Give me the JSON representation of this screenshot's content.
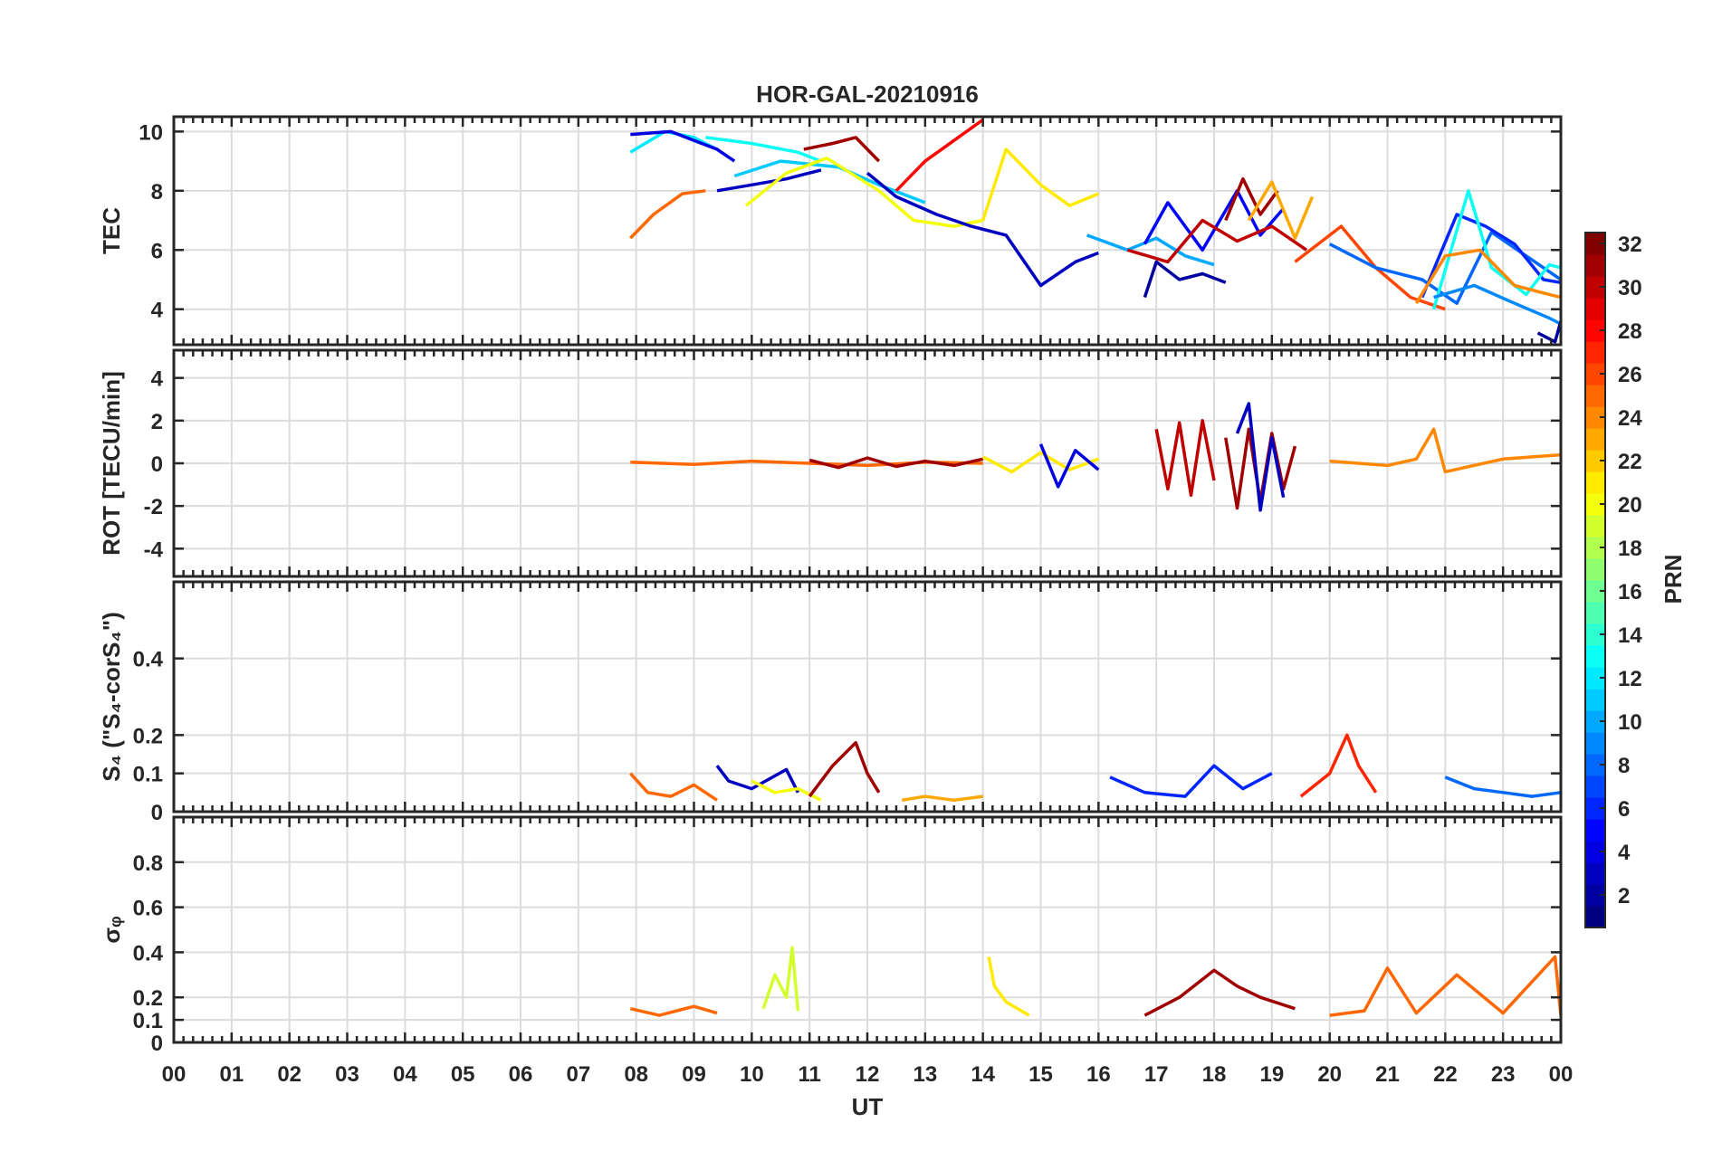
{
  "chart_data": {
    "type": "line",
    "title": "HOR-GAL-20210916",
    "xlabel": "UT",
    "x_ticks": [
      "00",
      "01",
      "02",
      "03",
      "04",
      "05",
      "06",
      "07",
      "08",
      "09",
      "10",
      "11",
      "12",
      "13",
      "14",
      "15",
      "16",
      "17",
      "18",
      "19",
      "20",
      "21",
      "22",
      "23",
      "00"
    ],
    "xlim": [
      0,
      24
    ],
    "grid": true,
    "colorbar": {
      "label": "PRN",
      "colormap": "jet",
      "range": [
        1,
        32
      ],
      "ticks": [
        "2",
        "4",
        "6",
        "8",
        "10",
        "12",
        "14",
        "16",
        "18",
        "20",
        "22",
        "24",
        "26",
        "28",
        "30",
        "32"
      ]
    },
    "panels": [
      {
        "ylabel": "TEC",
        "ylim": [
          2.8,
          10.5
        ],
        "yticks": [
          "4",
          "6",
          "8",
          "10"
        ],
        "ytick_values": [
          4,
          6,
          8,
          10
        ],
        "series": [
          {
            "prn": 25,
            "x": [
              7.9,
              8.3,
              8.8,
              9.2
            ],
            "y": [
              6.4,
              7.2,
              7.9,
              8.0
            ]
          },
          {
            "prn": 12,
            "x": [
              7.9,
              8.5,
              9.0,
              9.4
            ],
            "y": [
              9.3,
              10.0,
              9.8,
              9.4
            ]
          },
          {
            "prn": 4,
            "x": [
              7.9,
              8.6,
              9.4,
              9.7
            ],
            "y": [
              9.9,
              10.0,
              9.4,
              9.0
            ]
          },
          {
            "prn": 13,
            "x": [
              9.2,
              10.0,
              10.8,
              11.2
            ],
            "y": [
              9.8,
              9.6,
              9.3,
              9.0
            ]
          },
          {
            "prn": 3,
            "x": [
              9.4,
              10.0,
              10.6,
              11.2
            ],
            "y": [
              8.0,
              8.2,
              8.4,
              8.7
            ]
          },
          {
            "prn": 11,
            "x": [
              9.7,
              10.5,
              11.5,
              12.2,
              13.0
            ],
            "y": [
              8.5,
              9.0,
              8.8,
              8.2,
              7.6
            ]
          },
          {
            "prn": 20,
            "x": [
              9.9,
              10.6,
              11.3,
              12.2,
              12.8,
              13.5,
              14.0
            ],
            "y": [
              7.5,
              8.6,
              9.1,
              8.0,
              7.0,
              6.8,
              7.0
            ]
          },
          {
            "prn": 31,
            "x": [
              10.9,
              11.4,
              11.8,
              12.2
            ],
            "y": [
              9.4,
              9.6,
              9.8,
              9.0
            ]
          },
          {
            "prn": 28,
            "x": [
              12.5,
              13.0,
              13.5,
              14.0
            ],
            "y": [
              8.0,
              9.0,
              9.7,
              10.4
            ]
          },
          {
            "prn": 3,
            "x": [
              12.0,
              12.5,
              13.2,
              13.8,
              14.4,
              15.0,
              15.6,
              16.0
            ],
            "y": [
              8.6,
              7.8,
              7.2,
              6.8,
              6.5,
              4.8,
              5.6,
              5.9
            ]
          },
          {
            "prn": 21,
            "x": [
              14.0,
              14.4,
              15.0,
              15.5,
              16.0
            ],
            "y": [
              7.0,
              9.4,
              8.2,
              7.5,
              7.9
            ]
          },
          {
            "prn": 10,
            "x": [
              15.8,
              16.5,
              17.0,
              17.5,
              18.0
            ],
            "y": [
              6.5,
              6.0,
              6.4,
              5.8,
              5.5
            ]
          },
          {
            "prn": 2,
            "x": [
              16.8,
              17.0,
              17.4,
              17.8,
              18.2
            ],
            "y": [
              4.4,
              5.6,
              5.0,
              5.2,
              4.9
            ]
          },
          {
            "prn": 5,
            "x": [
              16.8,
              17.2,
              17.8,
              18.4,
              18.8,
              19.2
            ],
            "y": [
              6.2,
              7.6,
              6.0,
              8.0,
              6.5,
              7.4
            ]
          },
          {
            "prn": 31,
            "x": [
              18.2,
              18.5,
              18.8,
              19.1
            ],
            "y": [
              7.0,
              8.4,
              7.2,
              8.0
            ]
          },
          {
            "prn": 23,
            "x": [
              18.6,
              19.0,
              19.4,
              19.7
            ],
            "y": [
              7.0,
              8.3,
              6.4,
              7.8
            ]
          },
          {
            "prn": 30,
            "x": [
              16.5,
              17.2,
              17.8,
              18.4,
              19.0,
              19.6
            ],
            "y": [
              6.0,
              5.6,
              7.0,
              6.3,
              6.8,
              6.0
            ]
          },
          {
            "prn": 26,
            "x": [
              19.4,
              20.2,
              20.8,
              21.4,
              22.0
            ],
            "y": [
              5.6,
              6.8,
              5.4,
              4.4,
              4.0
            ]
          },
          {
            "prn": 8,
            "x": [
              20.0,
              20.8,
              21.6,
              22.2,
              22.8,
              23.4,
              24.0
            ],
            "y": [
              6.2,
              5.4,
              5.0,
              4.2,
              6.6,
              5.8,
              5.0
            ]
          },
          {
            "prn": 6,
            "x": [
              21.6,
              22.2,
              22.7,
              23.2,
              23.7,
              24.0
            ],
            "y": [
              4.4,
              7.2,
              6.8,
              6.2,
              5.0,
              4.9
            ]
          },
          {
            "prn": 13,
            "x": [
              21.8,
              22.4,
              22.8,
              23.4,
              23.8,
              24.0
            ],
            "y": [
              4.0,
              8.0,
              5.4,
              4.5,
              5.5,
              5.4
            ]
          },
          {
            "prn": 24,
            "x": [
              21.5,
              22.0,
              22.6,
              23.2,
              23.8,
              24.0
            ],
            "y": [
              4.2,
              5.8,
              6.0,
              4.8,
              4.5,
              4.4
            ]
          },
          {
            "prn": 9,
            "x": [
              21.8,
              22.5,
              23.2,
              23.8,
              24.0
            ],
            "y": [
              4.4,
              4.8,
              4.2,
              3.7,
              3.5
            ]
          },
          {
            "prn": 2,
            "x": [
              23.6,
              23.9,
              24.0
            ],
            "y": [
              3.2,
              2.9,
              3.6
            ]
          }
        ]
      },
      {
        "ylabel": "ROT [TECU/min]",
        "ylim": [
          -5.3,
          5.3
        ],
        "yticks": [
          "-4",
          "-2",
          "0",
          "2",
          "4"
        ],
        "ytick_values": [
          -4,
          -2,
          0,
          2,
          4
        ],
        "series": [
          {
            "prn": 25,
            "x": [
              7.9,
              9.0,
              10.0,
              11.0,
              12.0,
              13.0,
              14.0
            ],
            "y": [
              0.05,
              -0.05,
              0.1,
              0.0,
              -0.1,
              0.05,
              0.0
            ]
          },
          {
            "prn": 31,
            "x": [
              11.0,
              11.5,
              12.0,
              12.5,
              13.0,
              13.5,
              14.0
            ],
            "y": [
              0.15,
              -0.2,
              0.25,
              -0.15,
              0.1,
              -0.1,
              0.2
            ]
          },
          {
            "prn": 21,
            "x": [
              14.0,
              14.5,
              15.0,
              15.5,
              16.0
            ],
            "y": [
              0.3,
              -0.4,
              0.5,
              -0.3,
              0.2
            ]
          },
          {
            "prn": 4,
            "x": [
              15.0,
              15.3,
              15.6,
              16.0
            ],
            "y": [
              0.9,
              -1.1,
              0.6,
              -0.3
            ]
          },
          {
            "prn": 30,
            "x": [
              17.0,
              17.2,
              17.4,
              17.6,
              17.8,
              18.0
            ],
            "y": [
              1.6,
              -1.2,
              1.9,
              -1.5,
              2.0,
              -0.8
            ]
          },
          {
            "prn": 31,
            "x": [
              18.2,
              18.4,
              18.6,
              18.8,
              19.0,
              19.2,
              19.4
            ],
            "y": [
              1.2,
              -2.1,
              1.6,
              -1.8,
              1.4,
              -1.2,
              0.8
            ]
          },
          {
            "prn": 3,
            "x": [
              18.4,
              18.6,
              18.8,
              19.0,
              19.2
            ],
            "y": [
              1.4,
              2.8,
              -2.2,
              1.2,
              -1.6
            ]
          },
          {
            "prn": 24,
            "x": [
              20.0,
              21.0,
              21.5,
              21.8,
              22.0,
              23.0,
              24.0
            ],
            "y": [
              0.1,
              -0.1,
              0.2,
              1.6,
              -0.4,
              0.2,
              0.4
            ]
          }
        ]
      },
      {
        "ylabel": "S₄ (\"S₄-corS₄\")",
        "ylim": [
          0,
          0.6
        ],
        "yticks": [
          "0",
          "0.1",
          "0.2",
          "0.4"
        ],
        "ytick_values": [
          0,
          0.1,
          0.2,
          0.4
        ],
        "series": [
          {
            "prn": 25,
            "x": [
              7.9,
              8.2,
              8.6,
              9.0,
              9.4
            ],
            "y": [
              0.1,
              0.05,
              0.04,
              0.07,
              0.03
            ]
          },
          {
            "prn": 3,
            "x": [
              9.4,
              9.6,
              10.0,
              10.6,
              10.8
            ],
            "y": [
              0.12,
              0.08,
              0.06,
              0.11,
              0.05
            ]
          },
          {
            "prn": 20,
            "x": [
              10.0,
              10.4,
              10.8,
              11.2
            ],
            "y": [
              0.08,
              0.05,
              0.06,
              0.03
            ]
          },
          {
            "prn": 31,
            "x": [
              11.0,
              11.4,
              11.8,
              12.0,
              12.2
            ],
            "y": [
              0.04,
              0.12,
              0.18,
              0.1,
              0.05
            ]
          },
          {
            "prn": 23,
            "x": [
              12.6,
              13.0,
              13.5,
              14.0
            ],
            "y": [
              0.03,
              0.04,
              0.03,
              0.04
            ]
          },
          {
            "prn": 6,
            "x": [
              16.2,
              16.8,
              17.5,
              18.0,
              18.5,
              19.0
            ],
            "y": [
              0.09,
              0.05,
              0.04,
              0.12,
              0.06,
              0.1
            ]
          },
          {
            "prn": 27,
            "x": [
              19.5,
              20.0,
              20.3,
              20.5,
              20.8
            ],
            "y": [
              0.04,
              0.1,
              0.2,
              0.12,
              0.05
            ]
          },
          {
            "prn": 8,
            "x": [
              22.0,
              22.5,
              23.0,
              23.5,
              24.0
            ],
            "y": [
              0.09,
              0.06,
              0.05,
              0.04,
              0.05
            ]
          }
        ]
      },
      {
        "ylabel": "σᵩ",
        "ylim": [
          0,
          1.0
        ],
        "yticks": [
          "0",
          "0.1",
          "0.2",
          "0.4",
          "0.6",
          "0.8"
        ],
        "ytick_values": [
          0,
          0.1,
          0.2,
          0.4,
          0.6,
          0.8
        ],
        "series": [
          {
            "prn": 25,
            "x": [
              7.9,
              8.4,
              9.0,
              9.4
            ],
            "y": [
              0.15,
              0.12,
              0.16,
              0.13
            ]
          },
          {
            "prn": 19,
            "x": [
              10.2,
              10.4,
              10.6,
              10.7,
              10.8
            ],
            "y": [
              0.15,
              0.3,
              0.2,
              0.42,
              0.14
            ]
          },
          {
            "prn": 21,
            "x": [
              14.1,
              14.2,
              14.4,
              14.8
            ],
            "y": [
              0.38,
              0.25,
              0.18,
              0.12
            ]
          },
          {
            "prn": 31,
            "x": [
              16.8,
              17.4,
              18.0,
              18.4,
              18.8,
              19.4
            ],
            "y": [
              0.12,
              0.2,
              0.32,
              0.25,
              0.2,
              0.15
            ]
          },
          {
            "prn": 25,
            "x": [
              20.0,
              20.6,
              21.0,
              21.5,
              22.2,
              23.0,
              23.9,
              24.0
            ],
            "y": [
              0.12,
              0.14,
              0.33,
              0.13,
              0.3,
              0.13,
              0.38,
              0.12
            ]
          }
        ]
      }
    ]
  }
}
